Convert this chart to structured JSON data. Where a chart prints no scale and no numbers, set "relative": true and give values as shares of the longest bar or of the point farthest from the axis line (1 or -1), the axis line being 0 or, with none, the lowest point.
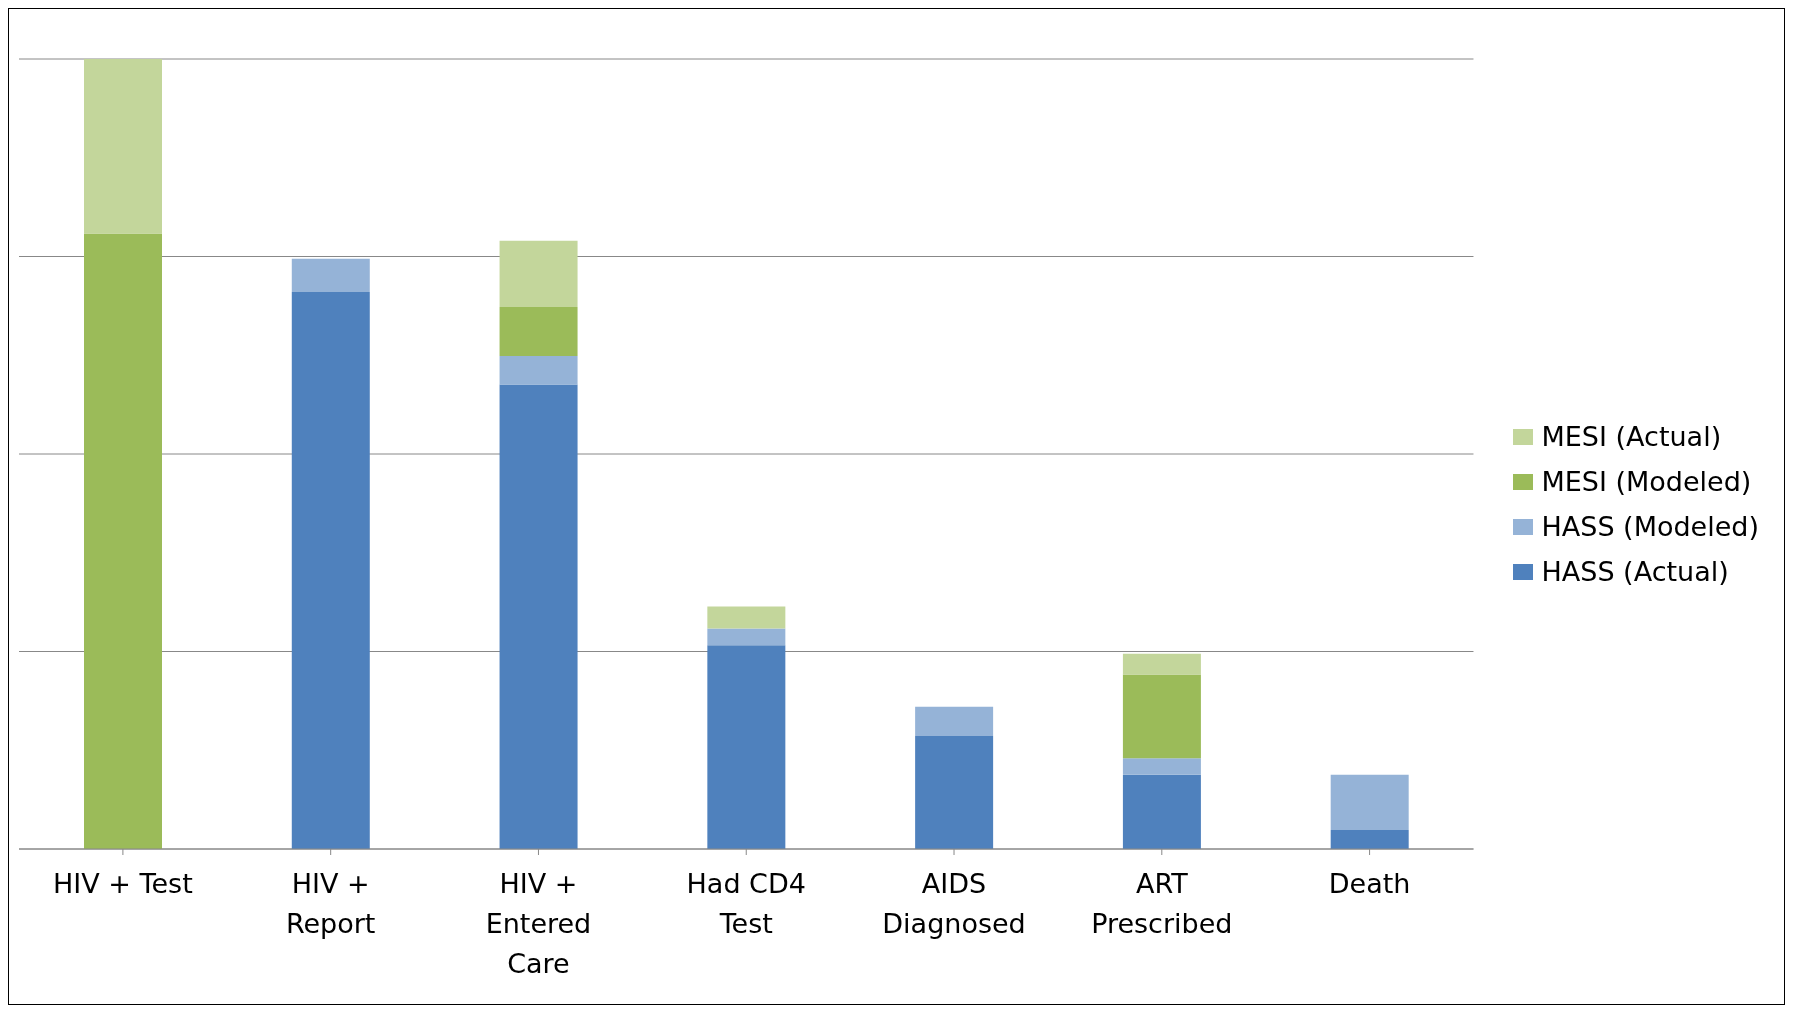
{
  "chart_data": {
    "type": "bar",
    "stacked": true,
    "relative": true,
    "grid": "y",
    "legend": "right",
    "categories": [
      "HIV + Test",
      "HIV + Report",
      "HIV + Entered Care",
      "Had CD4 Test",
      "AIDS Diagnosed",
      "ART Prescribed",
      "Death"
    ],
    "series": [
      {
        "name": "HASS (Actual)",
        "color": "#4f81bd",
        "values": [
          null,
          0.705,
          0.588,
          0.258,
          0.143,
          0.094,
          0.024
        ]
      },
      {
        "name": "HASS (Modeled)",
        "color": "#95b3d7",
        "values": [
          null,
          0.042,
          0.036,
          0.021,
          0.037,
          0.021,
          0.07
        ]
      },
      {
        "name": "MESI (Modeled)",
        "color": "#9bbb59",
        "values": [
          0.779,
          null,
          0.062,
          null,
          null,
          0.106,
          null
        ]
      },
      {
        "name": "MESI (Actual)",
        "color": "#c3d69b",
        "values": [
          0.221,
          null,
          0.084,
          0.028,
          null,
          0.026,
          null
        ]
      }
    ]
  }
}
